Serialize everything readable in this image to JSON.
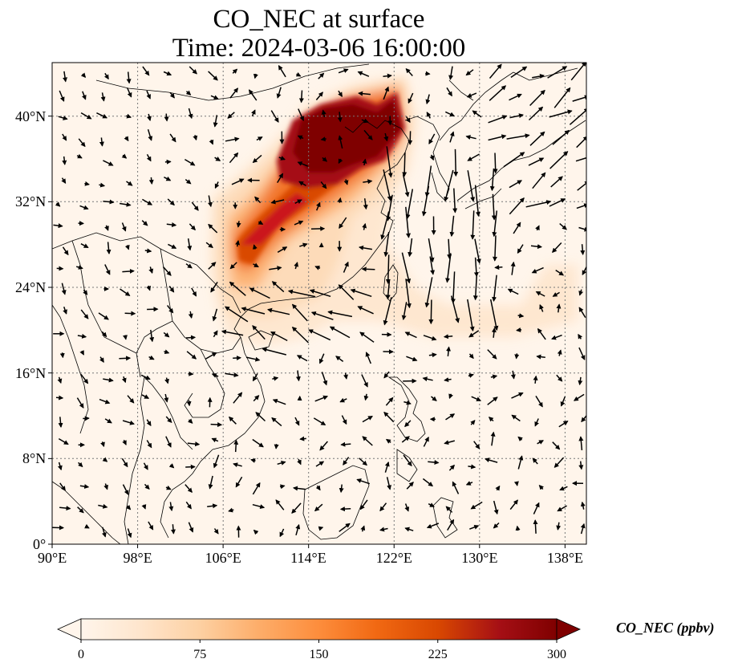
{
  "title": {
    "line1": "CO_NEC at surface",
    "line2": "Time: 2024-03-06 16:00:00"
  },
  "map": {
    "lon_range": [
      90,
      140
    ],
    "lat_range": [
      0,
      45
    ],
    "gridlines": "dotted",
    "x_ticks": [
      {
        "value": 90,
        "label": "90°E"
      },
      {
        "value": 98,
        "label": "98°E"
      },
      {
        "value": 106,
        "label": "106°E"
      },
      {
        "value": 114,
        "label": "114°E"
      },
      {
        "value": 122,
        "label": "122°E"
      },
      {
        "value": 130,
        "label": "130°E"
      },
      {
        "value": 138,
        "label": "138°E"
      }
    ],
    "y_ticks": [
      {
        "value": 0,
        "label": "0°"
      },
      {
        "value": 8,
        "label": "8°N"
      },
      {
        "value": 16,
        "label": "16°N"
      },
      {
        "value": 24,
        "label": "24°N"
      },
      {
        "value": 32,
        "label": "32°N"
      },
      {
        "value": 40,
        "label": "40°N"
      }
    ],
    "background_color": "#fff5eb",
    "plume_colors": [
      "#fdd9b4",
      "#fdae6b",
      "#e6550d",
      "#a50f15",
      "#7f0000"
    ],
    "vector_color": "#000000",
    "coastline_color": "#000000"
  },
  "colorbar": {
    "label": "CO_NEC (ppbv)",
    "min": 0,
    "max": 300,
    "extend": "both",
    "ticks": [
      {
        "value": 0,
        "label": "0"
      },
      {
        "value": 75,
        "label": "75"
      },
      {
        "value": 150,
        "label": "150"
      },
      {
        "value": 225,
        "label": "225"
      },
      {
        "value": 300,
        "label": "300"
      }
    ],
    "colors": [
      "#fff5eb",
      "#fee6ce",
      "#fdd0a2",
      "#fdae6b",
      "#fd8d3c",
      "#f16913",
      "#d94801",
      "#a50f15",
      "#7f0000"
    ]
  }
}
